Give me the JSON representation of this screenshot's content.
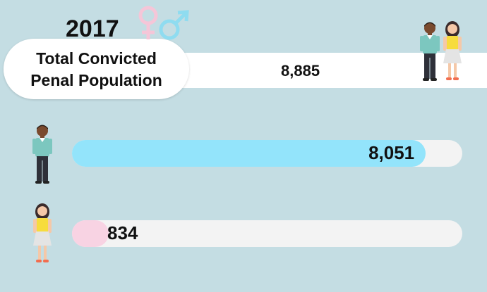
{
  "chart_data": {
    "type": "bar",
    "title": "2017",
    "subtitle": "Total Convicted Penal Population",
    "total": 8885,
    "total_label": "8,885",
    "categories": [
      null,
      null
    ],
    "values": [
      8051,
      834
    ],
    "value_labels": [
      "8,051",
      "834"
    ],
    "colors": [
      "#93e4fb",
      "#f8d3e3"
    ]
  }
}
